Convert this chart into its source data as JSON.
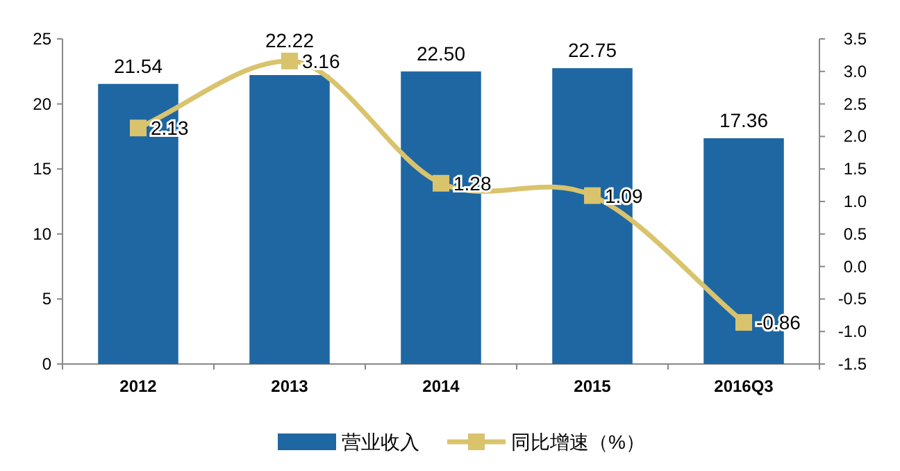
{
  "chart_data": {
    "type": "bar",
    "categories": [
      "2012",
      "2013",
      "2014",
      "2015",
      "2016Q3"
    ],
    "series": [
      {
        "name": "营业收入",
        "color": "#1f67a3",
        "values": [
          21.54,
          22.22,
          22.5,
          22.75,
          17.36
        ],
        "value_labels": [
          "21.54",
          "22.22",
          "22.50",
          "22.75",
          "17.36"
        ]
      },
      {
        "name": "同比增速（%）",
        "type": "line",
        "axis": "y2",
        "color": "#d9c36c",
        "values": [
          2.13,
          3.16,
          1.28,
          1.09,
          -0.86
        ],
        "value_labels": [
          "2.13",
          "3.16",
          "1.28",
          "1.09",
          "-0.86"
        ]
      }
    ],
    "ylim": [
      0,
      25
    ],
    "yticks": [
      0,
      5,
      10,
      15,
      20,
      25
    ],
    "y2lim": [
      -1.5,
      3.5
    ],
    "y2ticks": [
      {
        "value": -1.5,
        "label": "-1.5"
      },
      {
        "value": -1,
        "label": "-1.0"
      },
      {
        "value": -0.5,
        "label": "-0.5"
      },
      {
        "value": 0,
        "label": "0.0"
      },
      {
        "value": 0.5,
        "label": "0.5"
      },
      {
        "value": 1,
        "label": "1.0"
      },
      {
        "value": 1.5,
        "label": "1.5"
      },
      {
        "value": 2,
        "label": "2.0"
      },
      {
        "value": 2.5,
        "label": "2.5"
      },
      {
        "value": 3,
        "label": "3.0"
      },
      {
        "value": 3.5,
        "label": "3.5"
      }
    ],
    "marker": "square",
    "line_style": "solid",
    "legend": "bottom",
    "grid": false
  }
}
